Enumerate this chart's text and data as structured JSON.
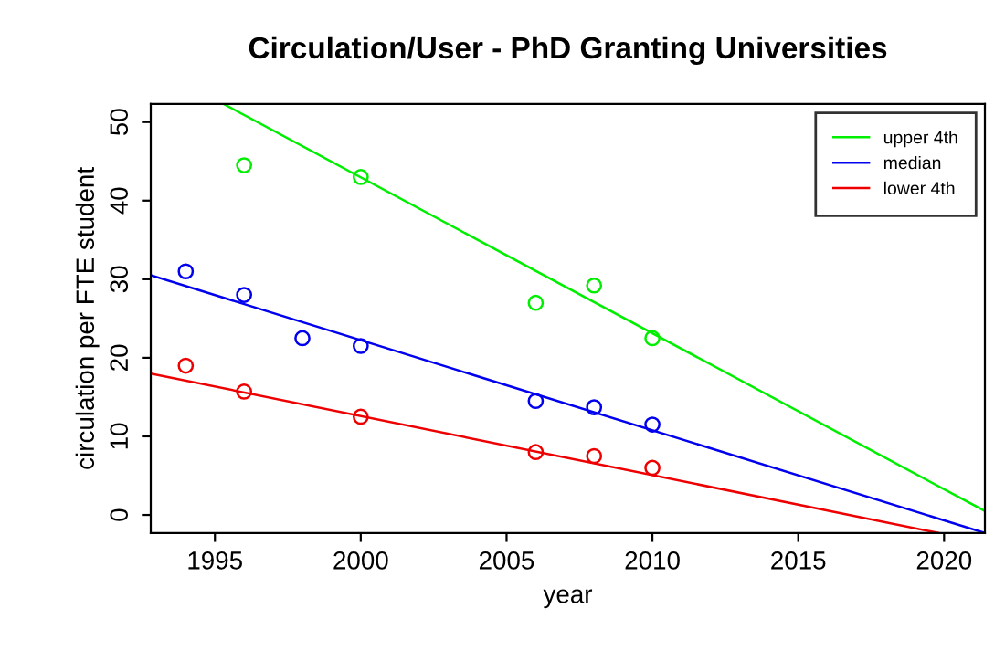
{
  "chart_data": {
    "type": "scatter",
    "title": "Circulation/User - PhD Granting Universities",
    "xlabel": "year",
    "ylabel": "circulation per FTE student",
    "xlim": [
      1992.8,
      2021.4
    ],
    "ylim": [
      -2.3,
      52.3
    ],
    "xticks": [
      1995,
      2000,
      2005,
      2010,
      2015,
      2020
    ],
    "yticks": [
      0,
      10,
      20,
      30,
      40,
      50
    ],
    "grid": false,
    "legend": "top right",
    "series": [
      {
        "marker": "circle",
        "color": "#00ee00",
        "x": [
          1996,
          2000,
          2006,
          2008,
          2010
        ],
        "values": [
          44.5,
          43,
          27,
          29.2,
          22.5
        ]
      },
      {
        "marker": "circle",
        "color": "#0000ee",
        "x": [
          1994,
          1996,
          1998,
          2000,
          2006,
          2008,
          2010
        ],
        "values": [
          31,
          28,
          22.5,
          21.5,
          14.5,
          13.7,
          11.5
        ]
      },
      {
        "marker": "circle",
        "color": "#ee0000",
        "x": [
          1994,
          1996,
          2000,
          2006,
          2008,
          2010
        ],
        "values": [
          19,
          15.7,
          12.5,
          8,
          7.5,
          6
        ]
      },
      {
        "type": "line",
        "marker": "none",
        "name": "upper 4th",
        "color": "#00ee00",
        "x": [
          1995.3,
          2021.4
        ],
        "values": [
          52.3,
          0.5
        ]
      },
      {
        "type": "line",
        "marker": "none",
        "name": "median",
        "color": "#0000ee",
        "x": [
          1992.8,
          2021.4
        ],
        "values": [
          30.5,
          -2.3
        ]
      },
      {
        "type": "line",
        "marker": "none",
        "name": "lower 4th",
        "color": "#ee0000",
        "x": [
          1992.8,
          2019.8
        ],
        "values": [
          18,
          -2.3
        ]
      }
    ]
  }
}
